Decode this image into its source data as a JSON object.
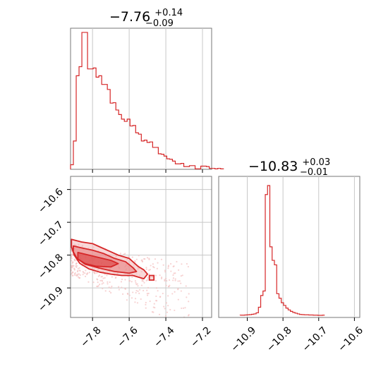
{
  "chart_data": {
    "type": "corner",
    "colors": {
      "accent": "#d62728",
      "fill_light": "#f2b8b8",
      "fill_mid": "#e88080",
      "scatter": "#f4c0c0",
      "grid": "#c8c8c8",
      "frame": "#777777"
    },
    "panels": [
      {
        "id": "hist-x",
        "type": "histogram",
        "title": {
          "value": "−7.76",
          "upper": "+0.14",
          "lower": "−0.09"
        },
        "xlim": [
          -7.92,
          -7.15
        ],
        "bins": {
          "start": -7.92,
          "width": 0.01545,
          "counts": [
            10,
            62,
            205,
            225,
            300,
            300,
            220,
            220,
            222,
            202,
            205,
            186,
            186,
            175,
            145,
            146,
            130,
            120,
            110,
            105,
            110,
            95,
            96,
            80,
            77,
            62,
            64,
            59,
            60,
            48,
            48,
            34,
            33,
            29,
            23,
            22,
            18,
            12,
            12,
            13,
            6,
            6,
            8,
            8,
            1,
            1,
            7,
            7,
            6,
            2,
            2,
            1,
            2,
            1
          ]
        },
        "xgrid": [
          -7.8,
          -7.6,
          -7.4,
          -7.2
        ]
      },
      {
        "id": "joint",
        "type": "contour",
        "xlim": [
          -7.92,
          -7.15
        ],
        "ylim": [
          -10.99,
          -10.56
        ],
        "xticks": [
          -7.8,
          -7.6,
          -7.4,
          -7.2
        ],
        "xtick_labels": [
          "−7.8",
          "−7.6",
          "−7.4",
          "−7.2"
        ],
        "yticks": [
          -10.6,
          -10.7,
          -10.8,
          -10.9
        ],
        "ytick_labels": [
          "−10.6",
          "−10.7",
          "−10.8",
          "−10.9"
        ],
        "contours": [
          [
            [
              -7.915,
              -10.752
            ],
            [
              -7.86,
              -10.76
            ],
            [
              -7.8,
              -10.765
            ],
            [
              -7.76,
              -10.775
            ],
            [
              -7.7,
              -10.79
            ],
            [
              -7.66,
              -10.8
            ],
            [
              -7.6,
              -10.81
            ],
            [
              -7.55,
              -10.835
            ],
            [
              -7.52,
              -10.845
            ],
            [
              -7.5,
              -10.858
            ],
            [
              -7.52,
              -10.872
            ],
            [
              -7.58,
              -10.862
            ],
            [
              -7.64,
              -10.862
            ],
            [
              -7.7,
              -10.858
            ],
            [
              -7.76,
              -10.852
            ],
            [
              -7.82,
              -10.842
            ],
            [
              -7.87,
              -10.825
            ],
            [
              -7.9,
              -10.8
            ],
            [
              -7.915,
              -10.775
            ],
            [
              -7.915,
              -10.752
            ]
          ],
          [
            [
              -7.905,
              -10.772
            ],
            [
              -7.86,
              -10.778
            ],
            [
              -7.8,
              -10.785
            ],
            [
              -7.74,
              -10.795
            ],
            [
              -7.68,
              -10.81
            ],
            [
              -7.62,
              -10.82
            ],
            [
              -7.58,
              -10.838
            ],
            [
              -7.56,
              -10.85
            ],
            [
              -7.6,
              -10.855
            ],
            [
              -7.68,
              -10.85
            ],
            [
              -7.76,
              -10.84
            ],
            [
              -7.84,
              -10.828
            ],
            [
              -7.885,
              -10.81
            ],
            [
              -7.905,
              -10.79
            ],
            [
              -7.905,
              -10.772
            ]
          ],
          [
            [
              -7.88,
              -10.792
            ],
            [
              -7.82,
              -10.8
            ],
            [
              -7.76,
              -10.808
            ],
            [
              -7.7,
              -10.816
            ],
            [
              -7.66,
              -10.826
            ],
            [
              -7.7,
              -10.836
            ],
            [
              -7.78,
              -10.834
            ],
            [
              -7.84,
              -10.826
            ],
            [
              -7.88,
              -10.812
            ],
            [
              -7.88,
              -10.792
            ]
          ]
        ],
        "outlier_contours": [
          [
            [
              -7.49,
              -10.862
            ],
            [
              -7.465,
              -10.862
            ],
            [
              -7.465,
              -10.876
            ],
            [
              -7.49,
              -10.876
            ],
            [
              -7.49,
              -10.862
            ]
          ]
        ],
        "scatter_band": {
          "x_start": -7.92,
          "y_start": -10.79,
          "slope": -0.27,
          "width": 0.05
        }
      },
      {
        "id": "hist-y",
        "type": "histogram",
        "title": {
          "value": "−10.83",
          "upper": "+0.03",
          "lower": "−0.01"
        },
        "xlim": [
          -10.98,
          -10.585
        ],
        "xticks": [
          -10.9,
          -10.8,
          -10.7,
          -10.6
        ],
        "xtick_labels": [
          "−10.9",
          "−10.8",
          "−10.7",
          "−10.6"
        ],
        "bins": {
          "start": -10.92,
          "width": 0.0064,
          "counts": [
            1,
            1,
            2,
            3,
            4,
            6,
            8,
            14,
            45,
            110,
            135,
            670,
            720,
            380,
            305,
            280,
            120,
            95,
            70,
            55,
            40,
            30,
            22,
            16,
            12,
            8,
            5,
            4,
            3,
            3,
            2,
            2,
            1,
            1,
            0,
            0,
            1
          ]
        }
      }
    ]
  }
}
